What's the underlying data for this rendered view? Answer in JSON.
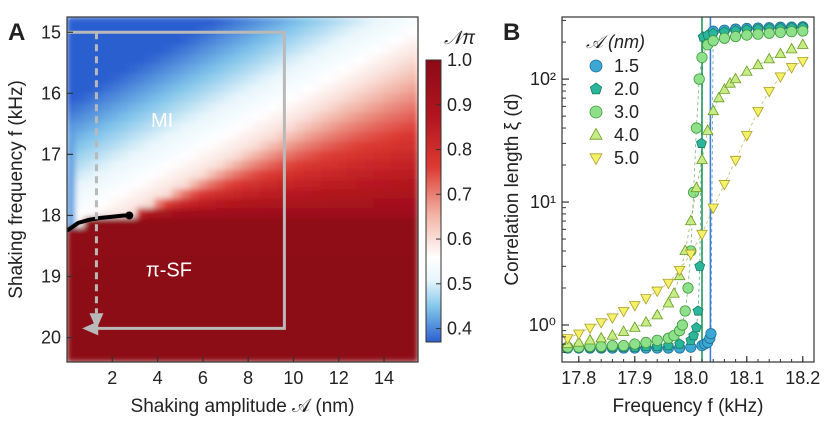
{
  "chart_data": [
    {
      "panel": "A",
      "type": "heatmap",
      "xlabel": "Shaking amplitude 𝒜 (nm)",
      "ylabel": "Shaking frequency f (kHz)",
      "xlim": [
        0,
        15.5
      ],
      "ylim": [
        14.75,
        20.4
      ],
      "xticks": [
        2,
        4,
        6,
        8,
        10,
        12,
        14
      ],
      "yticks": [
        15,
        16,
        17,
        18,
        19,
        20
      ],
      "colorbar": {
        "label": "𝒩π",
        "range": [
          0.37,
          1.0
        ],
        "ticks": [
          0.4,
          0.5,
          0.6,
          0.7,
          0.8,
          0.9,
          1.0
        ],
        "colors": [
          "#2b5fd0",
          "#e8f6fb",
          "#ffffff",
          "#8b0a17"
        ]
      },
      "region_labels": {
        "upper": "MI",
        "lower": "π-SF"
      },
      "phase_boundary": {
        "x": [
          0,
          0.5,
          1.0,
          1.5,
          2.0,
          2.5,
          2.75
        ],
        "y": [
          18.25,
          18.12,
          18.07,
          18.04,
          18.02,
          18.0,
          18.0
        ]
      },
      "boundary_edge": {
        "x": [
          0,
          15.5
        ],
        "y": [
          18.0,
          18.05
        ]
      },
      "path_solid": {
        "x": [
          0.0,
          9.6,
          9.6,
          1.2
        ],
        "y": [
          15.0,
          15.0,
          19.85,
          19.85
        ]
      },
      "path_dashed": {
        "x": [
          1.3,
          1.3
        ],
        "y": [
          15.0,
          19.7
        ]
      }
    },
    {
      "panel": "B",
      "type": "scatter",
      "xlabel": "Frequency f (kHz)",
      "ylabel": "Correlation length ξ (d)",
      "yscale": "log",
      "xlim": [
        17.77,
        18.22
      ],
      "ylim": [
        0.5,
        320
      ],
      "xticks": [
        "17.8",
        "17.9",
        "18.0",
        "18.1",
        "18.2"
      ],
      "yticks": [
        {
          "v": 1,
          "label": "10⁰"
        },
        {
          "v": 10,
          "label": "10¹"
        },
        {
          "v": 100,
          "label": "10²"
        }
      ],
      "legend_title": "𝒜 (nm)",
      "vlines": [
        {
          "x": 18.02,
          "color": "#1e9a5a"
        },
        {
          "x": 18.035,
          "color": "#3b7fd4"
        }
      ],
      "series": [
        {
          "name": "1.5",
          "marker": "circle",
          "color": "#3aa8d3",
          "edge": "#1f6f96",
          "x": [
            17.78,
            17.8,
            17.82,
            17.84,
            17.86,
            17.88,
            17.9,
            17.92,
            17.94,
            17.96,
            17.98,
            18.0,
            18.02,
            18.025,
            18.03,
            18.034,
            18.036,
            18.04,
            18.06,
            18.08,
            18.1,
            18.12,
            18.14,
            18.16,
            18.18,
            18.2
          ],
          "y": [
            0.65,
            0.65,
            0.65,
            0.65,
            0.65,
            0.65,
            0.65,
            0.65,
            0.65,
            0.65,
            0.65,
            0.66,
            0.68,
            0.7,
            0.72,
            0.78,
            0.85,
            245,
            250,
            255,
            258,
            260,
            262,
            264,
            265,
            266
          ]
        },
        {
          "name": "2.0",
          "marker": "pentagon",
          "color": "#2bb59a",
          "edge": "#167e64",
          "x": [
            17.78,
            17.8,
            17.82,
            17.84,
            17.86,
            17.88,
            17.9,
            17.92,
            17.94,
            17.96,
            17.98,
            18.0,
            18.005,
            18.01,
            18.013,
            18.016,
            18.019,
            18.022,
            18.03,
            18.04,
            18.06,
            18.08,
            18.1,
            18.12,
            18.14,
            18.16,
            18.18,
            18.2
          ],
          "y": [
            0.65,
            0.65,
            0.65,
            0.65,
            0.66,
            0.66,
            0.66,
            0.67,
            0.67,
            0.68,
            0.7,
            0.75,
            0.82,
            0.95,
            1.3,
            3.0,
            30,
            220,
            228,
            235,
            242,
            248,
            252,
            256,
            258,
            260,
            262,
            264
          ]
        },
        {
          "name": "3.0",
          "marker": "circle",
          "color": "#8fe08a",
          "edge": "#3f9a3f",
          "x": [
            17.78,
            17.8,
            17.82,
            17.84,
            17.86,
            17.88,
            17.9,
            17.92,
            17.94,
            17.96,
            17.97,
            17.98,
            17.985,
            17.99,
            17.995,
            18.0,
            18.005,
            18.01,
            18.015,
            18.02,
            18.03,
            18.04,
            18.06,
            18.08,
            18.1,
            18.12,
            18.14,
            18.16,
            18.18,
            18.2
          ],
          "y": [
            0.66,
            0.66,
            0.67,
            0.67,
            0.68,
            0.68,
            0.7,
            0.72,
            0.75,
            0.78,
            0.82,
            0.9,
            1.0,
            1.3,
            2.0,
            4.0,
            12,
            40,
            100,
            150,
            190,
            205,
            215,
            222,
            228,
            232,
            236,
            240,
            243,
            246
          ]
        },
        {
          "name": "4.0",
          "marker": "triangle-up",
          "color": "#c6ec86",
          "edge": "#6c9a22",
          "x": [
            17.78,
            17.8,
            17.82,
            17.84,
            17.86,
            17.88,
            17.9,
            17.92,
            17.94,
            17.96,
            17.97,
            17.98,
            17.99,
            18.0,
            18.01,
            18.02,
            18.03,
            18.04,
            18.05,
            18.06,
            18.07,
            18.08,
            18.1,
            18.12,
            18.14,
            18.16,
            18.18,
            18.2
          ],
          "y": [
            0.7,
            0.72,
            0.75,
            0.78,
            0.82,
            0.88,
            0.95,
            1.05,
            1.2,
            1.5,
            1.8,
            2.5,
            4.0,
            7,
            13,
            22,
            38,
            55,
            70,
            82,
            92,
            100,
            115,
            130,
            145,
            160,
            175,
            190
          ]
        },
        {
          "name": "5.0",
          "marker": "triangle-down",
          "color": "#f4f067",
          "edge": "#a9a12a",
          "x": [
            17.78,
            17.8,
            17.82,
            17.84,
            17.86,
            17.88,
            17.9,
            17.92,
            17.94,
            17.96,
            17.98,
            18.0,
            18.02,
            18.04,
            18.06,
            18.08,
            18.1,
            18.12,
            18.14,
            18.16,
            18.18,
            18.2
          ],
          "y": [
            0.78,
            0.85,
            0.95,
            1.05,
            1.15,
            1.3,
            1.45,
            1.65,
            1.9,
            2.2,
            2.8,
            3.8,
            5.5,
            9,
            14,
            22,
            35,
            55,
            80,
            105,
            125,
            140
          ]
        }
      ]
    }
  ],
  "panel_labels": {
    "a": "A",
    "b": "B"
  }
}
